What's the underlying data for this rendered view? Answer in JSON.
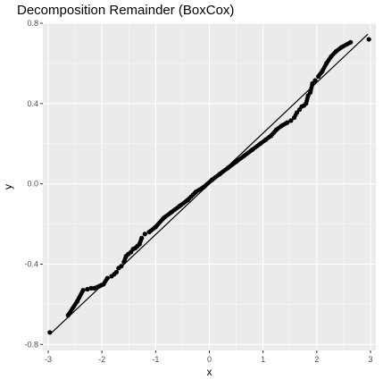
{
  "chart_data": {
    "type": "scatter",
    "title": "Decomposition Remainder (BoxCox)",
    "xlabel": "x",
    "ylabel": "y",
    "xlim": [
      -3.1,
      3.1
    ],
    "ylim": [
      -0.83,
      0.8
    ],
    "x_ticks": [
      -3,
      -2,
      -1,
      0,
      1,
      2,
      3
    ],
    "y_ticks": [
      -0.8,
      -0.4,
      0.0,
      0.4,
      0.8
    ],
    "x_tick_labels": [
      "-3",
      "-2",
      "-1",
      "0",
      "1",
      "2",
      "3"
    ],
    "y_tick_labels": [
      "-0.8",
      "-0.4",
      "0.0",
      "0.4",
      "0.8"
    ],
    "grid": true,
    "legend": "none",
    "background_color": "#EBEBEB",
    "grid_color": "#FFFFFF",
    "point_color": "#000000",
    "line_color": "#000000",
    "reference_line": {
      "x": [
        -2.95,
        2.95
      ],
      "y": [
        -0.745,
        0.745
      ]
    },
    "series": [
      {
        "x": [
          -2.97,
          -2.63,
          -2.46,
          -2.35,
          -2.27,
          -2.2,
          -2.14,
          -2.09,
          -2.05,
          -2.01,
          -1.97,
          -1.9,
          -1.82,
          -1.77,
          -1.73,
          -1.69,
          -1.64,
          -1.59,
          -1.55,
          -1.51,
          -1.46,
          -1.42,
          -1.38,
          -1.34,
          -1.3,
          -1.26,
          -1.2,
          -1.12,
          -1.0,
          -0.85,
          -0.7,
          -0.55,
          -0.4,
          -0.25,
          -0.1,
          0.05,
          0.2,
          0.35,
          0.5,
          0.65,
          0.8,
          0.95,
          1.05,
          1.15,
          1.25,
          1.35,
          1.45,
          1.52,
          1.58,
          1.63,
          1.68,
          1.72,
          1.76,
          1.8,
          1.84,
          1.88,
          1.92,
          1.97,
          2.03,
          2.1,
          2.18,
          2.27,
          2.36,
          2.46,
          2.63,
          2.97
        ],
        "y": [
          -0.74,
          -0.655,
          -0.585,
          -0.53,
          -0.525,
          -0.52,
          -0.52,
          -0.515,
          -0.51,
          -0.505,
          -0.5,
          -0.47,
          -0.46,
          -0.45,
          -0.44,
          -0.42,
          -0.41,
          -0.39,
          -0.36,
          -0.35,
          -0.34,
          -0.325,
          -0.32,
          -0.31,
          -0.3,
          -0.27,
          -0.25,
          -0.24,
          -0.215,
          -0.17,
          -0.14,
          -0.11,
          -0.08,
          -0.04,
          -0.015,
          0.02,
          0.05,
          0.08,
          0.11,
          0.14,
          0.17,
          0.2,
          0.22,
          0.24,
          0.27,
          0.29,
          0.305,
          0.315,
          0.33,
          0.355,
          0.37,
          0.385,
          0.39,
          0.4,
          0.44,
          0.455,
          0.5,
          0.515,
          0.535,
          0.56,
          0.6,
          0.635,
          0.66,
          0.68,
          0.705,
          0.72
        ]
      }
    ]
  }
}
